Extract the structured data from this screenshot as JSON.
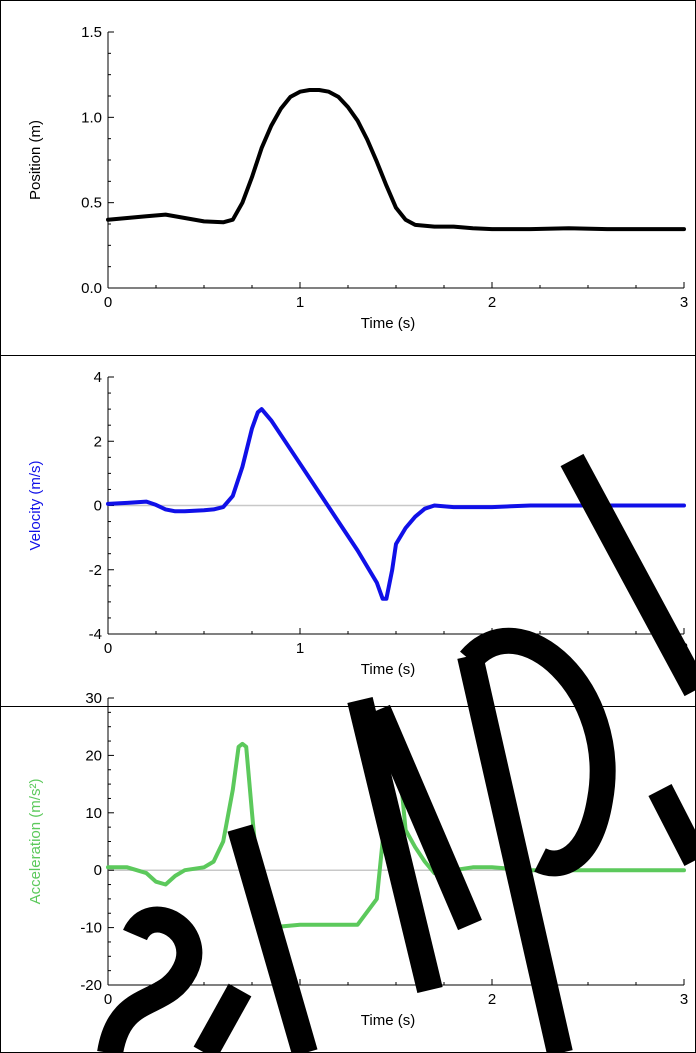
{
  "chart_data": [
    {
      "type": "line",
      "xlabel": "Time (s)",
      "ylabel": "Position (m)",
      "xlim": [
        0,
        3
      ],
      "ylim": [
        0,
        1.5
      ],
      "x_ticks": [
        "0",
        "1",
        "2",
        "3"
      ],
      "y_ticks": [
        "0.0",
        "0.5",
        "1.0",
        "1.5"
      ],
      "y_tick_values": [
        0,
        0.5,
        1.0,
        1.5
      ],
      "zero_line": false,
      "color": "#000000",
      "ylabel_color": "#000000",
      "series": [
        {
          "x": [
            0,
            0.1,
            0.2,
            0.3,
            0.4,
            0.5,
            0.6,
            0.65,
            0.7,
            0.75,
            0.8,
            0.85,
            0.9,
            0.95,
            1.0,
            1.05,
            1.1,
            1.15,
            1.2,
            1.25,
            1.3,
            1.35,
            1.4,
            1.45,
            1.5,
            1.55,
            1.6,
            1.7,
            1.8,
            1.9,
            2.0,
            2.2,
            2.4,
            2.6,
            2.8,
            3.0
          ],
          "y": [
            0.4,
            0.41,
            0.42,
            0.43,
            0.41,
            0.39,
            0.385,
            0.4,
            0.5,
            0.65,
            0.82,
            0.95,
            1.05,
            1.12,
            1.15,
            1.16,
            1.16,
            1.15,
            1.12,
            1.06,
            0.98,
            0.87,
            0.74,
            0.6,
            0.47,
            0.4,
            0.37,
            0.36,
            0.36,
            0.35,
            0.345,
            0.345,
            0.35,
            0.345,
            0.345,
            0.345
          ]
        }
      ]
    },
    {
      "type": "line",
      "xlabel": "Time (s)",
      "ylabel": "Velocity (m/s)",
      "xlim": [
        0,
        3
      ],
      "ylim": [
        -4,
        4
      ],
      "x_ticks": [
        "0",
        "1",
        "2",
        "3"
      ],
      "y_ticks": [
        "-4",
        "-2",
        "0",
        "2",
        "4"
      ],
      "y_tick_values": [
        -4,
        -2,
        0,
        2,
        4
      ],
      "zero_line": true,
      "color": "#1010e8",
      "ylabel_color": "#1010e8",
      "series": [
        {
          "x": [
            0,
            0.1,
            0.2,
            0.25,
            0.3,
            0.35,
            0.4,
            0.5,
            0.55,
            0.6,
            0.65,
            0.7,
            0.75,
            0.78,
            0.8,
            0.85,
            0.9,
            1.0,
            1.1,
            1.2,
            1.3,
            1.4,
            1.43,
            1.45,
            1.48,
            1.5,
            1.55,
            1.6,
            1.65,
            1.7,
            1.8,
            2.0,
            2.2,
            2.4,
            2.6,
            2.8,
            3.0
          ],
          "y": [
            0.05,
            0.08,
            0.12,
            0.02,
            -0.12,
            -0.18,
            -0.18,
            -0.15,
            -0.12,
            -0.05,
            0.3,
            1.2,
            2.4,
            2.9,
            3.0,
            2.65,
            2.2,
            1.3,
            0.4,
            -0.5,
            -1.4,
            -2.4,
            -2.9,
            -2.9,
            -2.0,
            -1.2,
            -0.7,
            -0.35,
            -0.1,
            0.0,
            -0.05,
            -0.05,
            0.0,
            0.0,
            0.0,
            0.0,
            0.0
          ]
        }
      ]
    },
    {
      "type": "line",
      "xlabel": "Time (s)",
      "ylabel": "Acceleration (m/s²)",
      "xlim": [
        0,
        3
      ],
      "ylim": [
        -20,
        30
      ],
      "x_ticks": [
        "0",
        "1",
        "2",
        "3"
      ],
      "y_ticks": [
        "-20",
        "-10",
        "0",
        "10",
        "20",
        "30"
      ],
      "y_tick_values": [
        -20,
        -10,
        0,
        10,
        20,
        30
      ],
      "zero_line": true,
      "color": "#5cc95c",
      "ylabel_color": "#5cc95c",
      "series": [
        {
          "x": [
            0,
            0.1,
            0.2,
            0.25,
            0.3,
            0.35,
            0.4,
            0.5,
            0.55,
            0.6,
            0.65,
            0.68,
            0.7,
            0.72,
            0.75,
            0.8,
            0.85,
            0.9,
            1.0,
            1.1,
            1.2,
            1.3,
            1.4,
            1.43,
            1.46,
            1.48,
            1.5,
            1.53,
            1.55,
            1.6,
            1.65,
            1.7,
            1.75,
            1.8,
            1.9,
            2.0,
            2.2,
            2.4,
            2.6,
            2.8,
            3.0
          ],
          "y": [
            0.5,
            0.5,
            -0.5,
            -2.0,
            -2.5,
            -1.0,
            0.0,
            0.5,
            1.5,
            5.0,
            14.0,
            21.5,
            22.0,
            21.5,
            10.0,
            -8.0,
            -10.0,
            -9.8,
            -9.5,
            -9.5,
            -9.5,
            -9.5,
            -5.0,
            5.0,
            15.0,
            22.0,
            21.0,
            14.0,
            7.0,
            4.0,
            1.5,
            -0.5,
            -0.8,
            0.0,
            0.5,
            0.5,
            0.0,
            0.0,
            0.0,
            0.0,
            0.0
          ]
        }
      ]
    }
  ],
  "colors": {
    "frame": "#000000",
    "grid": "#cccccc",
    "zero_line": "#c8c8c8",
    "watermark": "#000000"
  }
}
